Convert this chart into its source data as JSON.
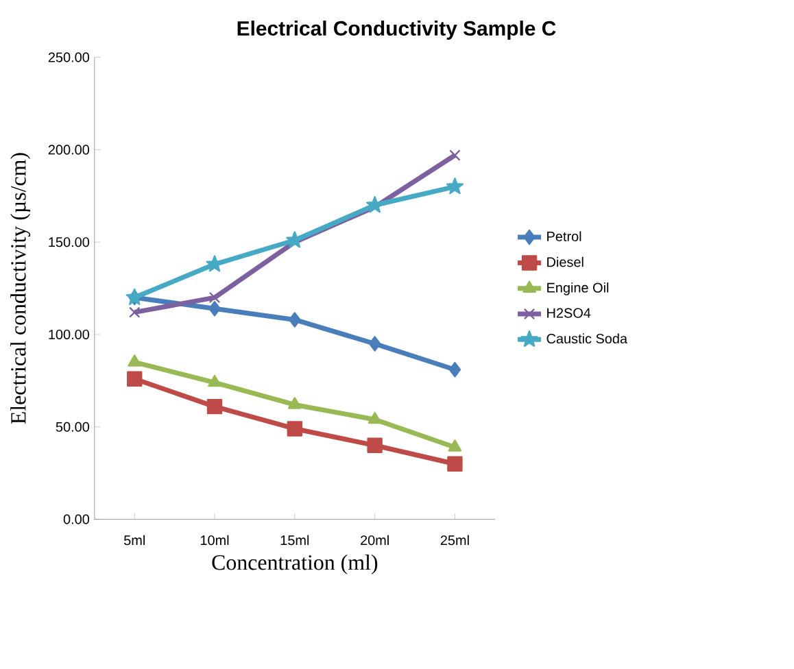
{
  "chart_data": {
    "type": "line",
    "title": "Electrical Conductivity Sample C",
    "xlabel": "Concentration (ml)",
    "ylabel": "Electrical conductivity (µs/cm)",
    "categories": [
      "5ml",
      "10ml",
      "15ml",
      "20ml",
      "25ml"
    ],
    "series": [
      {
        "name": "Petrol",
        "color": "#4a7ebb",
        "marker": "diamond",
        "values": [
          120,
          114,
          108,
          95,
          81
        ]
      },
      {
        "name": "Diesel",
        "color": "#be4b48",
        "marker": "square",
        "values": [
          76,
          61,
          49,
          40,
          30
        ]
      },
      {
        "name": "Engine Oil",
        "color": "#98b954",
        "marker": "triangle",
        "values": [
          85,
          74,
          62,
          54,
          39
        ]
      },
      {
        "name": "H2SO4",
        "color": "#7d60a0",
        "marker": "cross",
        "values": [
          112,
          120,
          150,
          169,
          197
        ]
      },
      {
        "name": "Caustic Soda",
        "color": "#46aac5",
        "marker": "star",
        "values": [
          120,
          138,
          151,
          170,
          180
        ]
      }
    ],
    "ylim": [
      0,
      250
    ],
    "yticks": [
      {
        "value": 0,
        "label": "0.00"
      },
      {
        "value": 50,
        "label": "50.00"
      },
      {
        "value": 100,
        "label": "100.00"
      },
      {
        "value": 150,
        "label": "150.00"
      },
      {
        "value": 200,
        "label": "200.00"
      },
      {
        "value": 250,
        "label": "250.00"
      }
    ],
    "grid": false,
    "legend": "right"
  }
}
